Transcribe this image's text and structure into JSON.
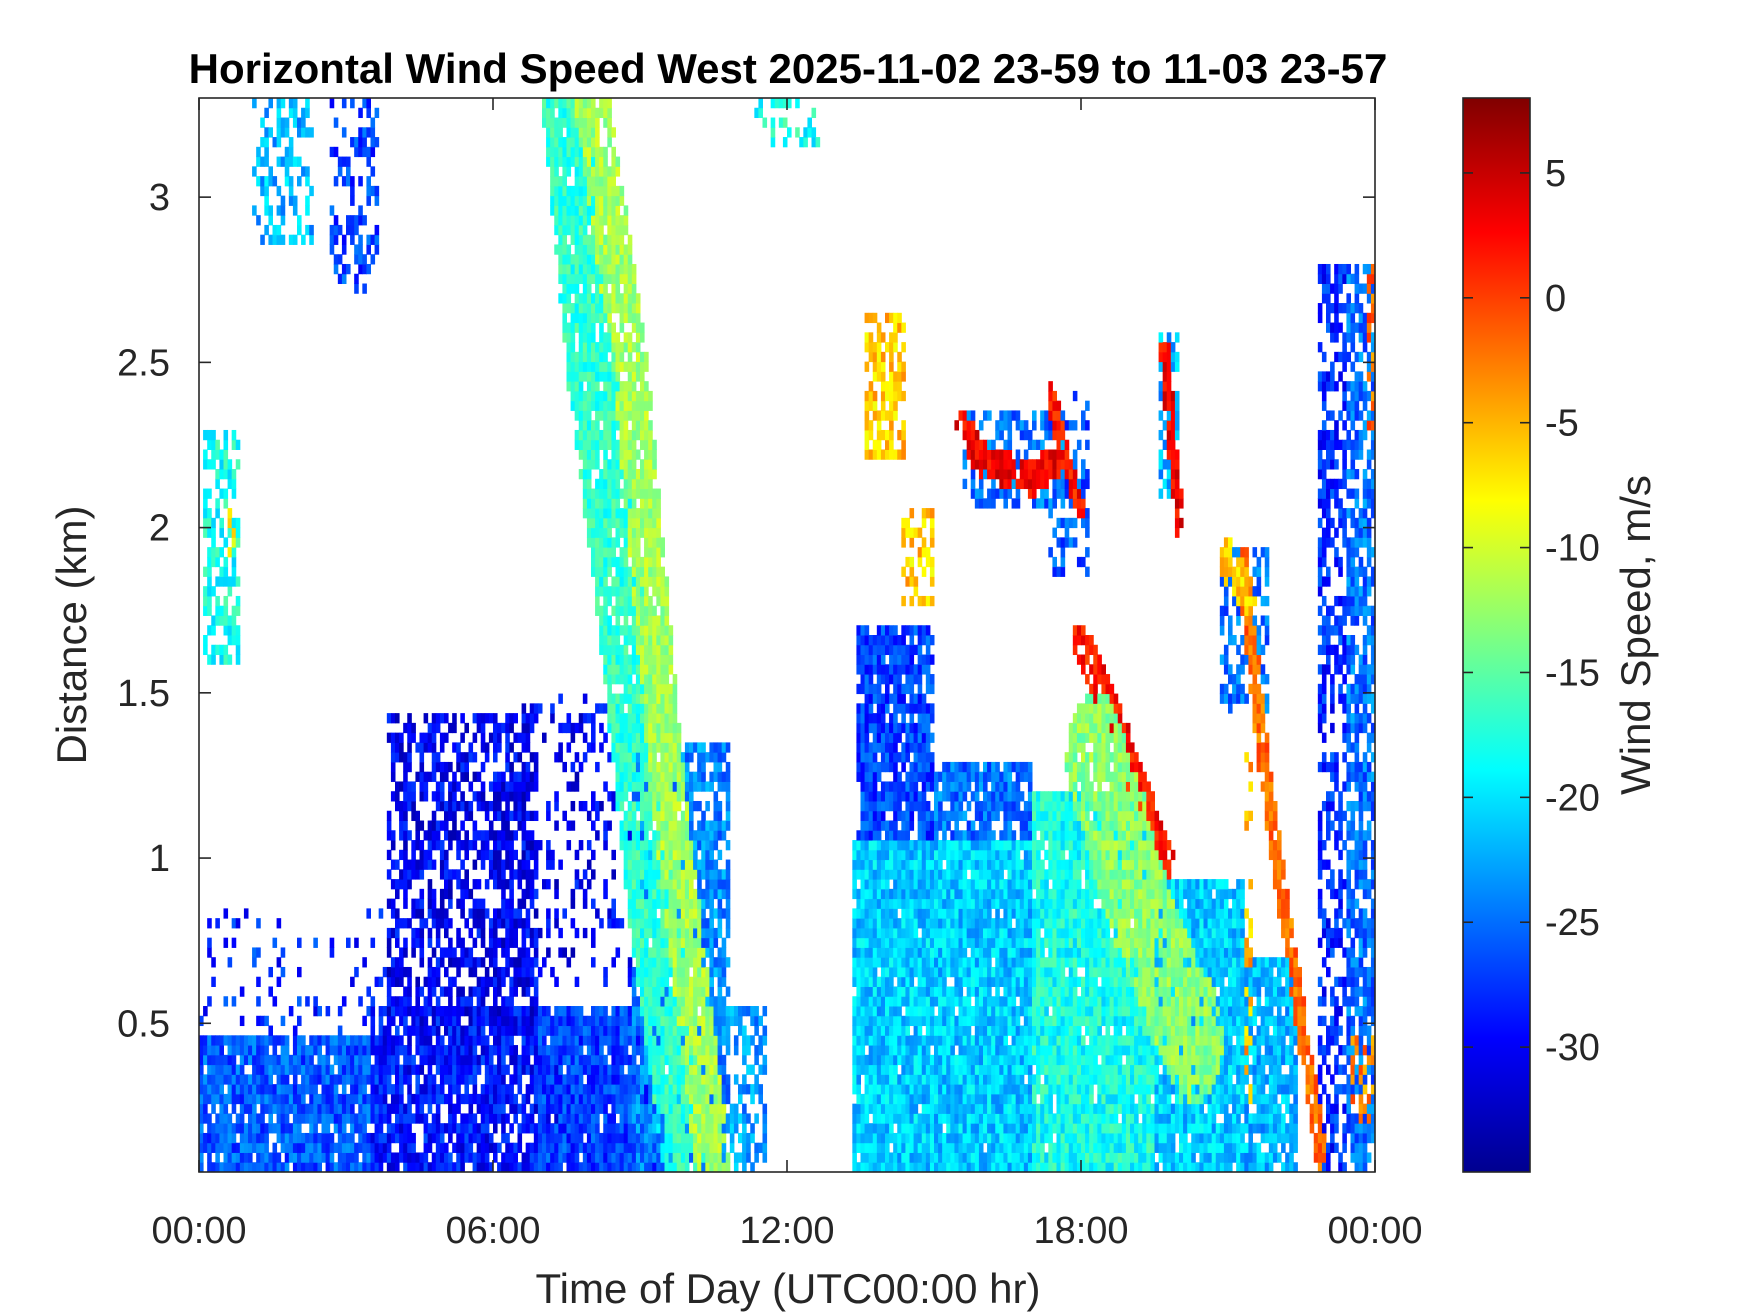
{
  "chart_data": {
    "type": "heatmap",
    "title": "Horizontal Wind Speed West 2025-11-02 23-59 to 11-03 23-57",
    "xlabel": "Time of Day (UTC00:00 hr)",
    "ylabel": "Distance (km)",
    "colorbar_label": "Wind Speed, m/s",
    "colormap": "jet",
    "x_unit": "hours",
    "xlim": [
      0,
      24
    ],
    "ylim": [
      0.05,
      3.3
    ],
    "clim": [
      -35,
      8
    ],
    "x_ticks": [
      {
        "value": 0,
        "label": "00:00"
      },
      {
        "value": 6,
        "label": "06:00"
      },
      {
        "value": 12,
        "label": "12:00"
      },
      {
        "value": 18,
        "label": "18:00"
      },
      {
        "value": 24,
        "label": "00:00"
      }
    ],
    "y_ticks": [
      {
        "value": 0.5,
        "label": "0.5"
      },
      {
        "value": 1,
        "label": "1"
      },
      {
        "value": 1.5,
        "label": "1.5"
      },
      {
        "value": 2,
        "label": "2"
      },
      {
        "value": 2.5,
        "label": "2.5"
      },
      {
        "value": 3,
        "label": "3"
      }
    ],
    "colorbar_ticks": [
      {
        "value": 5,
        "label": "5"
      },
      {
        "value": 0,
        "label": "0"
      },
      {
        "value": -5,
        "label": "-5"
      },
      {
        "value": -10,
        "label": "-10"
      },
      {
        "value": -15,
        "label": "-15"
      },
      {
        "value": -20,
        "label": "-20"
      },
      {
        "value": -25,
        "label": "-25"
      },
      {
        "value": -30,
        "label": "-30"
      }
    ],
    "grid": false,
    "regions": [
      {
        "t0": 0.0,
        "t1": 3.7,
        "h0": 0.05,
        "h1": 0.45,
        "v": -26,
        "density": 0.9
      },
      {
        "t0": 0.0,
        "t1": 4.0,
        "h0": 0.45,
        "h1": 0.85,
        "v": -28,
        "density": 0.12
      },
      {
        "t0": 0.05,
        "t1": 0.8,
        "h0": 1.6,
        "h1": 2.3,
        "v": -18,
        "density": 0.55
      },
      {
        "t0": 0.55,
        "t1": 0.85,
        "h0": 1.9,
        "h1": 2.1,
        "v": -8,
        "density": 0.4
      },
      {
        "t0": 1.1,
        "t1": 2.3,
        "h0": 2.85,
        "h1": 3.3,
        "v": -22,
        "density": 0.45
      },
      {
        "t0": 2.7,
        "t1": 3.7,
        "h0": 2.7,
        "h1": 3.3,
        "v": -27,
        "density": 0.35
      },
      {
        "t0": 3.5,
        "t1": 7.3,
        "h0": 0.05,
        "h1": 0.55,
        "v": -29,
        "density": 0.85
      },
      {
        "t0": 3.8,
        "t1": 6.9,
        "h0": 0.5,
        "h1": 1.45,
        "v": -30,
        "density": 0.6
      },
      {
        "t0": 6.9,
        "t1": 9.5,
        "h0": 0.05,
        "h1": 0.55,
        "v": -27,
        "density": 0.95
      },
      {
        "t0": 6.5,
        "t1": 8.8,
        "h0": 0.6,
        "h1": 1.5,
        "v": -30,
        "density": 0.25
      },
      {
        "t0": 8.8,
        "t1": 10.8,
        "h0": 0.05,
        "h1": 1.35,
        "v": -24,
        "density": 0.8
      },
      {
        "t0": 10.8,
        "t1": 11.6,
        "h0": 0.05,
        "h1": 0.55,
        "v": -23,
        "density": 0.55
      },
      {
        "t0": 11.3,
        "t1": 12.7,
        "h0": 3.15,
        "h1": 3.3,
        "v": -18,
        "density": 0.4
      },
      {
        "t0": 13.35,
        "t1": 17.0,
        "h0": 0.05,
        "h1": 1.05,
        "v": -21,
        "density": 0.97
      },
      {
        "t0": 13.4,
        "t1": 15.0,
        "h0": 1.05,
        "h1": 1.7,
        "v": -27,
        "density": 0.85
      },
      {
        "t0": 15.0,
        "t1": 17.0,
        "h0": 1.05,
        "h1": 1.3,
        "v": -25,
        "density": 0.8
      },
      {
        "t0": 17.0,
        "t1": 19.5,
        "h0": 0.05,
        "h1": 1.2,
        "v": -18,
        "density": 0.95
      },
      {
        "t0": 19.5,
        "t1": 21.3,
        "h0": 0.05,
        "h1": 0.95,
        "v": -21,
        "density": 0.95
      },
      {
        "t0": 21.3,
        "t1": 22.4,
        "h0": 0.05,
        "h1": 0.7,
        "v": -22,
        "density": 0.85
      },
      {
        "t0": 13.6,
        "t1": 14.4,
        "h0": 2.2,
        "h1": 2.65,
        "v": -6,
        "density": 0.65
      },
      {
        "t0": 14.3,
        "t1": 15.0,
        "h0": 1.75,
        "h1": 2.05,
        "v": -6,
        "density": 0.55
      },
      {
        "t0": 15.6,
        "t1": 17.7,
        "h0": 2.05,
        "h1": 2.35,
        "v": -25,
        "density": 0.55
      },
      {
        "t0": 17.3,
        "t1": 18.2,
        "h0": 1.85,
        "h1": 2.4,
        "v": -26,
        "density": 0.45
      },
      {
        "t0": 19.6,
        "t1": 20.0,
        "h0": 2.1,
        "h1": 2.6,
        "v": -22,
        "density": 0.6
      },
      {
        "t0": 20.8,
        "t1": 21.8,
        "h0": 1.45,
        "h1": 1.95,
        "v": -25,
        "density": 0.55
      },
      {
        "t0": 21.3,
        "t1": 21.5,
        "h0": 0.25,
        "h1": 1.35,
        "v": -5,
        "density": 0.35
      },
      {
        "t0": 22.8,
        "t1": 23.4,
        "h0": 0.05,
        "h1": 2.8,
        "v": -28,
        "density": 0.55
      },
      {
        "t0": 23.4,
        "t1": 24.0,
        "h0": 0.05,
        "h1": 2.8,
        "v": -25,
        "density": 0.7
      },
      {
        "t0": 23.5,
        "t1": 24.0,
        "h0": 0.2,
        "h1": 0.45,
        "v": -3,
        "density": 0.45
      },
      {
        "t0": 23.8,
        "t1": 24.0,
        "h0": 2.3,
        "h1": 2.8,
        "v": -2,
        "density": 0.45
      }
    ],
    "bands": [
      {
        "points": [
          [
            7.5,
            3.3
          ],
          [
            8.0,
            2.5
          ],
          [
            8.6,
            1.8
          ],
          [
            9.3,
            0.8
          ],
          [
            10.0,
            0.05
          ]
        ],
        "width": 0.5,
        "v": -17
      },
      {
        "points": [
          [
            8.0,
            3.3
          ],
          [
            8.8,
            2.5
          ],
          [
            9.5,
            1.3
          ],
          [
            10.5,
            0.05
          ]
        ],
        "width": 0.35,
        "v": -12
      },
      {
        "points": [
          [
            15.6,
            2.3
          ],
          [
            16.0,
            2.2
          ],
          [
            17.0,
            2.15
          ],
          [
            17.5,
            2.2
          ]
        ],
        "width": 0.15,
        "v": 3
      },
      {
        "points": [
          [
            17.4,
            2.4
          ],
          [
            17.6,
            2.25
          ],
          [
            18.0,
            2.05
          ]
        ],
        "width": 0.1,
        "v": 2
      },
      {
        "points": [
          [
            18.0,
            1.65
          ],
          [
            18.6,
            1.45
          ],
          [
            19.2,
            1.2
          ],
          [
            19.7,
            1.0
          ]
        ],
        "width": 0.18,
        "v": 2
      },
      {
        "points": [
          [
            18.3,
            1.3
          ],
          [
            19.3,
            0.8
          ],
          [
            20.3,
            0.45
          ]
        ],
        "width": 0.6,
        "v": -13
      },
      {
        "points": [
          [
            19.7,
            2.55
          ],
          [
            19.9,
            2.2
          ],
          [
            20.0,
            2.0
          ]
        ],
        "width": 0.1,
        "v": 3
      },
      {
        "points": [
          [
            21.3,
            1.9
          ],
          [
            21.8,
            1.2
          ],
          [
            22.4,
            0.6
          ],
          [
            22.9,
            0.1
          ]
        ],
        "width": 0.12,
        "v": -2
      },
      {
        "points": [
          [
            21.0,
            1.9
          ],
          [
            21.4,
            1.8
          ]
        ],
        "width": 0.18,
        "v": -6
      }
    ]
  }
}
